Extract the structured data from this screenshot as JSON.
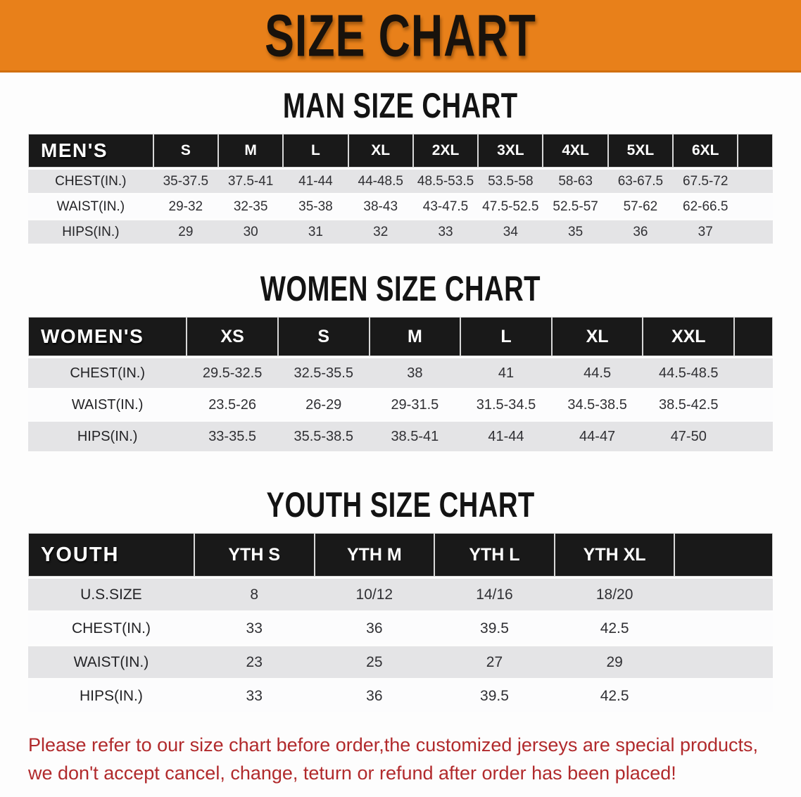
{
  "banner": {
    "title": "SIZE CHART",
    "bg_color": "#E8801A",
    "text_color": "#18120C"
  },
  "sections": [
    {
      "id": "men",
      "title": "MAN SIZE CHART",
      "table": {
        "header_label": "MEN'S",
        "columns": [
          "S",
          "M",
          "L",
          "XL",
          "2XL",
          "3XL",
          "4XL",
          "5XL",
          "6XL"
        ],
        "rows": [
          {
            "label": "CHEST(IN.)",
            "values": [
              "35-37.5",
              "37.5-41",
              "41-44",
              "44-48.5",
              "48.5-53.5",
              "53.5-58",
              "58-63",
              "63-67.5",
              "67.5-72"
            ]
          },
          {
            "label": "WAIST(IN.)",
            "values": [
              "29-32",
              "32-35",
              "35-38",
              "38-43",
              "43-47.5",
              "47.5-52.5",
              "52.5-57",
              "57-62",
              "62-66.5"
            ]
          },
          {
            "label": "HIPS(IN.)",
            "values": [
              "29",
              "30",
              "31",
              "32",
              "33",
              "34",
              "35",
              "36",
              "37"
            ]
          }
        ]
      }
    },
    {
      "id": "women",
      "title": "WOMEN SIZE CHART",
      "table": {
        "header_label": "WOMEN'S",
        "columns": [
          "XS",
          "S",
          "M",
          "L",
          "XL",
          "XXL"
        ],
        "rows": [
          {
            "label": "CHEST(IN.)",
            "values": [
              "29.5-32.5",
              "32.5-35.5",
              "38",
              "41",
              "44.5",
              "44.5-48.5"
            ]
          },
          {
            "label": "WAIST(IN.)",
            "values": [
              "23.5-26",
              "26-29",
              "29-31.5",
              "31.5-34.5",
              "34.5-38.5",
              "38.5-42.5"
            ]
          },
          {
            "label": "HIPS(IN.)",
            "values": [
              "33-35.5",
              "35.5-38.5",
              "38.5-41",
              "41-44",
              "44-47",
              "47-50"
            ]
          }
        ]
      }
    },
    {
      "id": "youth",
      "title": "YOUTH SIZE CHART",
      "table": {
        "header_label": "YOUTH",
        "columns": [
          "YTH S",
          "YTH M",
          "YTH L",
          "YTH XL"
        ],
        "rows": [
          {
            "label": "U.S.SIZE",
            "values": [
              "8",
              "10/12",
              "14/16",
              "18/20"
            ]
          },
          {
            "label": "CHEST(IN.)",
            "values": [
              "33",
              "36",
              "39.5",
              "42.5"
            ]
          },
          {
            "label": "WAIST(IN.)",
            "values": [
              "23",
              "25",
              "27",
              "29"
            ]
          },
          {
            "label": "HIPS(IN.)",
            "values": [
              "33",
              "36",
              "39.5",
              "42.5"
            ]
          }
        ]
      }
    }
  ],
  "disclaimer": {
    "lines": [
      "Please refer to our size chart before order,the customized jerseys are special products,",
      "we don't accept cancel, change, teturn or refund after order has been placed!"
    ],
    "color": "#B12A2C"
  },
  "colors": {
    "table_header_bg": "#191919",
    "row_alt_bg": "#E4E4E6",
    "row_bg": "#FCFCFD"
  }
}
